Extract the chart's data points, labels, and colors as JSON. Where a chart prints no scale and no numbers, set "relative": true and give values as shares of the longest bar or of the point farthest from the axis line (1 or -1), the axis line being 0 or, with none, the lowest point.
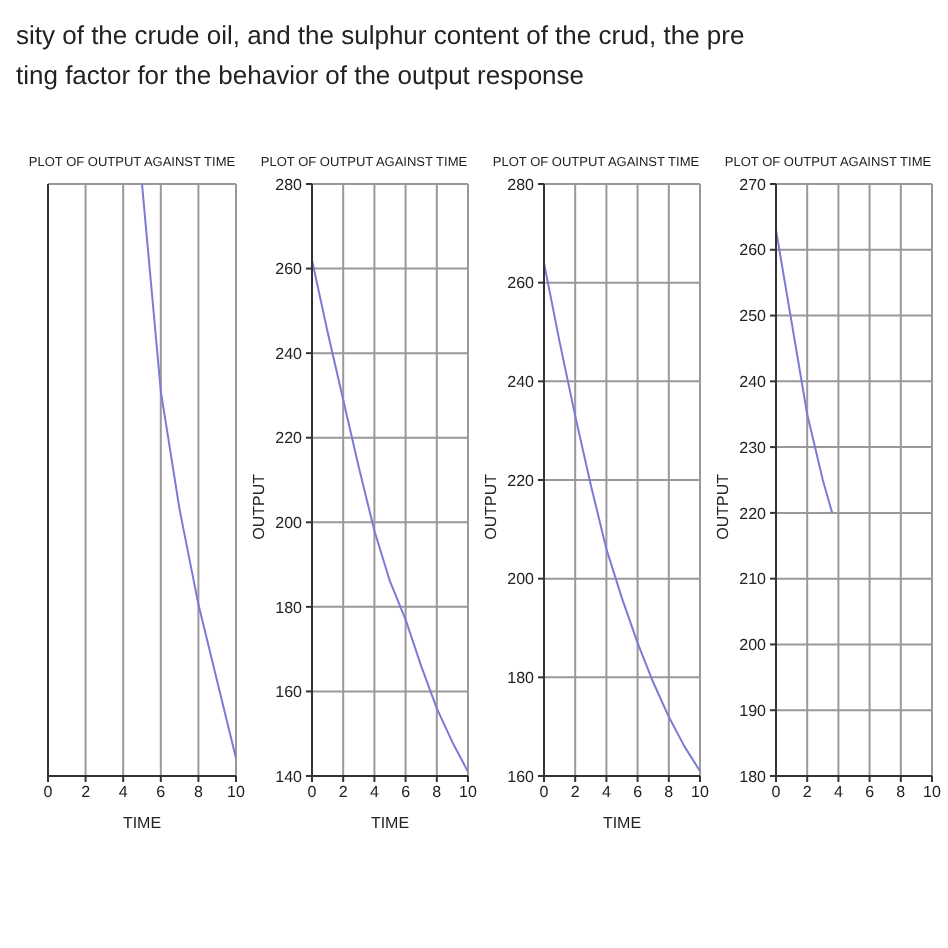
{
  "chart_data": [
    {
      "type": "line",
      "title": "PLOT OF OUTPUT AGAINST TIME",
      "xlabel": "TIME",
      "annotations": [
        "sity of the crude oil, and the sulphur content of the crud, the pre",
        "ting factor for the behavior of the output response"
      ],
      "relative": true,
      "tick_labels": "x",
      "xlim": [
        0,
        10
      ],
      "xticks": [
        0,
        2,
        4,
        6,
        8,
        10
      ],
      "grid": true,
      "marker": "none",
      "series": [
        {
          "color": "#7b7bd6",
          "x": [
            5,
            6,
            7,
            8,
            9,
            10
          ],
          "values": [
            1,
            0.65,
            0.45,
            0.29,
            0.16,
            0.03
          ]
        }
      ]
    },
    {
      "type": "line",
      "title": "PLOT OF OUTPUT AGAINST TIME",
      "xlabel": "TIME",
      "ylabel": "OUTPUT",
      "xlim": [
        0,
        10
      ],
      "xticks": [
        0,
        2,
        4,
        6,
        8,
        10
      ],
      "ylim": [
        140,
        280
      ],
      "yticks": [
        140,
        160,
        180,
        200,
        220,
        240,
        260,
        280
      ],
      "grid": true,
      "marker": "none",
      "series": [
        {
          "color": "#7b7bd6",
          "x": [
            0,
            1,
            2,
            3,
            4,
            5,
            6,
            7,
            8,
            9,
            10
          ],
          "values": [
            262,
            245,
            229,
            213,
            198,
            186,
            177,
            166,
            156,
            148,
            141
          ]
        }
      ]
    },
    {
      "type": "line",
      "title": "PLOT OF OUTPUT AGAINST TIME",
      "xlabel": "TIME",
      "ylabel": "OUTPUT",
      "xlim": [
        0,
        10
      ],
      "xticks": [
        0,
        2,
        4,
        6,
        8,
        10
      ],
      "ylim": [
        160,
        280
      ],
      "yticks": [
        160,
        180,
        200,
        220,
        240,
        260,
        280
      ],
      "grid": true,
      "marker": "none",
      "series": [
        {
          "color": "#7b7bd6",
          "x": [
            0,
            1,
            2,
            3,
            4,
            5,
            6,
            7,
            8,
            9,
            10
          ],
          "values": [
            264,
            248,
            233,
            219,
            206,
            196,
            187,
            179,
            172,
            166,
            161
          ]
        }
      ]
    },
    {
      "type": "line",
      "title": "PLOT OF OUTPUT AGAINST TIME",
      "ylabel": "OUTPUT",
      "xlim": [
        0,
        10
      ],
      "xticks": [
        0,
        2,
        4,
        6,
        8,
        10
      ],
      "ylim": [
        180,
        270
      ],
      "yticks": [
        180,
        190,
        200,
        210,
        220,
        230,
        240,
        250,
        260,
        270
      ],
      "grid": true,
      "marker": "none",
      "series": [
        {
          "color": "#7b7bd6",
          "x": [
            0,
            1,
            2,
            3,
            3.6
          ],
          "values": [
            263,
            249,
            235,
            225,
            220
          ]
        }
      ]
    }
  ]
}
